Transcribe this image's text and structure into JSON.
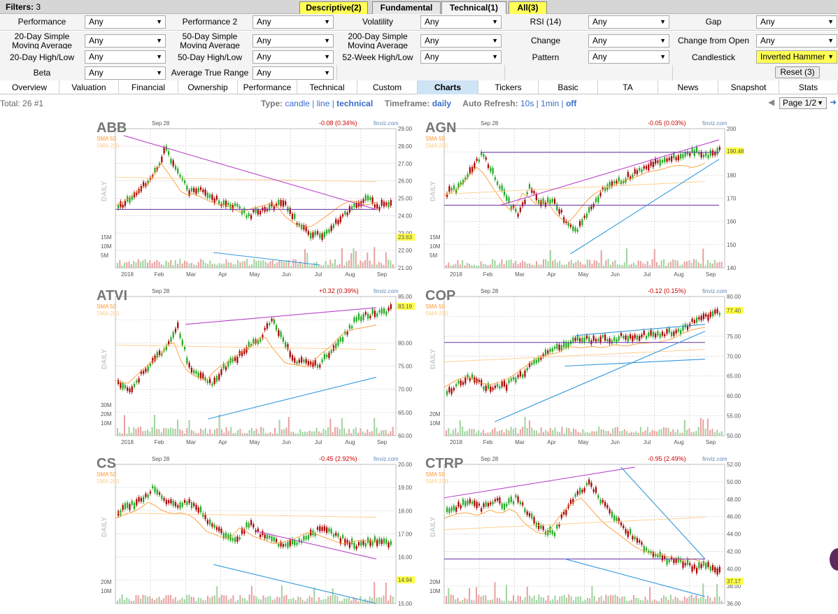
{
  "filters": {
    "label": "Filters:",
    "count": "3"
  },
  "filter_tabs": [
    {
      "label": "Descriptive(2)"
    },
    {
      "label": "Fundamental"
    },
    {
      "label": "Technical(1)"
    },
    {
      "label": "All(3)"
    }
  ],
  "filter_rows": [
    [
      {
        "label": "Performance",
        "value": "Any"
      },
      {
        "label": "Performance 2",
        "value": "Any"
      },
      {
        "label": "Volatility",
        "value": "Any"
      },
      {
        "label": "RSI (14)",
        "value": "Any"
      },
      {
        "label": "Gap",
        "value": "Any"
      }
    ],
    [
      {
        "label": "20-Day Simple Moving Average",
        "value": "Any"
      },
      {
        "label": "50-Day Simple Moving Average",
        "value": "Any"
      },
      {
        "label": "200-Day Simple Moving Average",
        "value": "Any"
      },
      {
        "label": "Change",
        "value": "Any"
      },
      {
        "label": "Change from Open",
        "value": "Any"
      }
    ],
    [
      {
        "label": "20-Day High/Low",
        "value": "Any"
      },
      {
        "label": "50-Day High/Low",
        "value": "Any"
      },
      {
        "label": "52-Week High/Low",
        "value": "Any"
      },
      {
        "label": "Pattern",
        "value": "Any"
      },
      {
        "label": "Candlestick",
        "value": "Inverted Hammer"
      }
    ],
    [
      {
        "label": "Beta",
        "value": "Any"
      },
      {
        "label": "Average True Range",
        "value": "Any"
      }
    ]
  ],
  "reset_label": "Reset (3)",
  "nav_tabs": [
    "Overview",
    "Valuation",
    "Financial",
    "Ownership",
    "Performance",
    "Technical",
    "Custom",
    "Charts",
    "Tickers",
    "Basic",
    "TA",
    "News",
    "Snapshot",
    "Stats"
  ],
  "total": {
    "label": "Total:",
    "value": "26",
    "num": "#1"
  },
  "type": {
    "label": "Type:",
    "options": [
      "candle",
      "line",
      "technical"
    ],
    "sep": "|"
  },
  "timeframe": {
    "label": "Timeframe:",
    "value": "daily"
  },
  "refresh": {
    "label": "Auto Refresh:",
    "options": [
      "10s",
      "1min",
      "off"
    ],
    "sep": "|"
  },
  "page": {
    "label": "Page 1/2"
  },
  "colors": {
    "accent_yellow": "#ffff55",
    "sma50": "#ff9933",
    "sma200": "#ffcc88",
    "up": "#22aa22",
    "down": "#aa0000",
    "trend_purple": "#bb44cc",
    "trend_blue": "#3399dd",
    "price_tag": "#ffff44"
  },
  "icons": {
    "left_arrow": "left-arrow-icon",
    "right_arrow": "right-arrow-icon"
  },
  "charts": [
    {
      "ticker": "ABB",
      "date": "Sep 28",
      "change": "-0.08 (0.34%)",
      "source": "finviz.com",
      "sma50": "SMA 50",
      "sma200": "SMA 200",
      "mode": "DAILY",
      "price": "23.63",
      "y_ticks": [
        "29.00",
        "28.00",
        "27.00",
        "26.00",
        "25.00",
        "24.00",
        "23.00",
        "22.00",
        "21.00"
      ],
      "vol_ticks": [
        "15M",
        "10M",
        "5M"
      ],
      "x_ticks": [
        "2018",
        "Feb",
        "Mar",
        "Apr",
        "May",
        "Jun",
        "Jul",
        "Aug",
        "Sep"
      ]
    },
    {
      "ticker": "AGN",
      "date": "Sep 28",
      "change": "-0.05 (0.03%)",
      "source": "finviz.com",
      "sma50": "SMA 50",
      "sma200": "SMA 200",
      "mode": "DAILY",
      "price": "190.48",
      "y_ticks": [
        "200",
        "",
        "180",
        "170",
        "160",
        "150",
        "140"
      ],
      "vol_ticks": [
        "15M",
        "10M",
        "5M"
      ],
      "x_ticks": [
        "2018",
        "Feb",
        "Mar",
        "Apr",
        "May",
        "Jun",
        "Jul",
        "Aug",
        "Sep"
      ]
    },
    {
      "ticker": "ATVI",
      "date": "Sep 28",
      "change": "+0.32 (0.39%)",
      "source": "finviz.com",
      "sma50": "SMA 50",
      "sma200": "SMA 200",
      "mode": "DAILY",
      "price": "83.19",
      "y_ticks": [
        "85.00",
        "",
        "80.00",
        "75.00",
        "70.00",
        "65.00",
        "60.00"
      ],
      "vol_ticks": [
        "30M",
        "20M",
        "10M"
      ],
      "x_ticks": [
        "2018",
        "Feb",
        "Mar",
        "Apr",
        "May",
        "Jun",
        "Jul",
        "Aug",
        "Sep"
      ]
    },
    {
      "ticker": "COP",
      "date": "Sep 28",
      "change": "-0.12 (0.15%)",
      "source": "finviz.com",
      "sma50": "SMA 50",
      "sma200": "SMA 200",
      "mode": "DAILY",
      "price": "77.40",
      "y_ticks": [
        "80.00",
        "",
        "75.00",
        "70.00",
        "65.00",
        "60.00",
        "55.00",
        "50.00"
      ],
      "vol_ticks": [
        "20M",
        "10M"
      ],
      "x_ticks": [
        "2018",
        "Feb",
        "Mar",
        "Apr",
        "May",
        "Jun",
        "Jul",
        "Aug",
        "Sep"
      ]
    },
    {
      "ticker": "CS",
      "date": "Sep 28",
      "change": "-0.45 (2.92%)",
      "source": "finviz.com",
      "sma50": "SMA 50",
      "sma200": "SMA 200",
      "mode": "DAILY",
      "price": "14.94",
      "y_ticks": [
        "20.00",
        "19.00",
        "18.00",
        "17.00",
        "16.00",
        "",
        "15.00"
      ],
      "vol_ticks": [
        "20M",
        "10M"
      ],
      "x_ticks": []
    },
    {
      "ticker": "CTRP",
      "date": "Sep 28",
      "change": "-0.95 (2.49%)",
      "source": "finviz.com",
      "sma50": "SMA 50",
      "sma200": "SMA 200",
      "mode": "DAILY",
      "price": "37.17",
      "y_ticks": [
        "52.00",
        "50.00",
        "48.00",
        "46.00",
        "44.00",
        "42.00",
        "40.00",
        "38.00",
        "36.00"
      ],
      "vol_ticks": [
        "20M",
        "10M"
      ],
      "x_ticks": []
    }
  ]
}
